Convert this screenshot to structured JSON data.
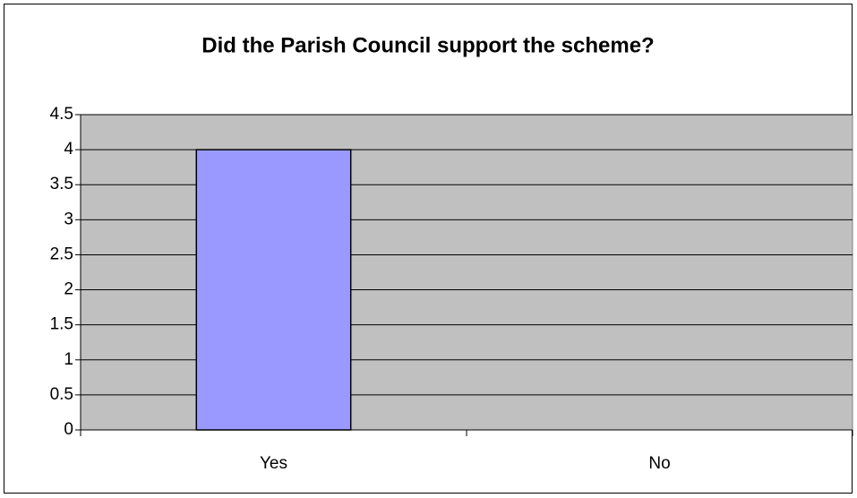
{
  "chart_data": {
    "type": "bar",
    "title": "Did the Parish Council support the scheme?",
    "categories": [
      "Yes",
      "No"
    ],
    "values": [
      4,
      0
    ],
    "color": "#9999ff",
    "ylim": [
      0,
      4.5
    ],
    "yticks": [
      0,
      0.5,
      1,
      1.5,
      2,
      2.5,
      3,
      3.5,
      4,
      4.5
    ],
    "grid": true
  }
}
